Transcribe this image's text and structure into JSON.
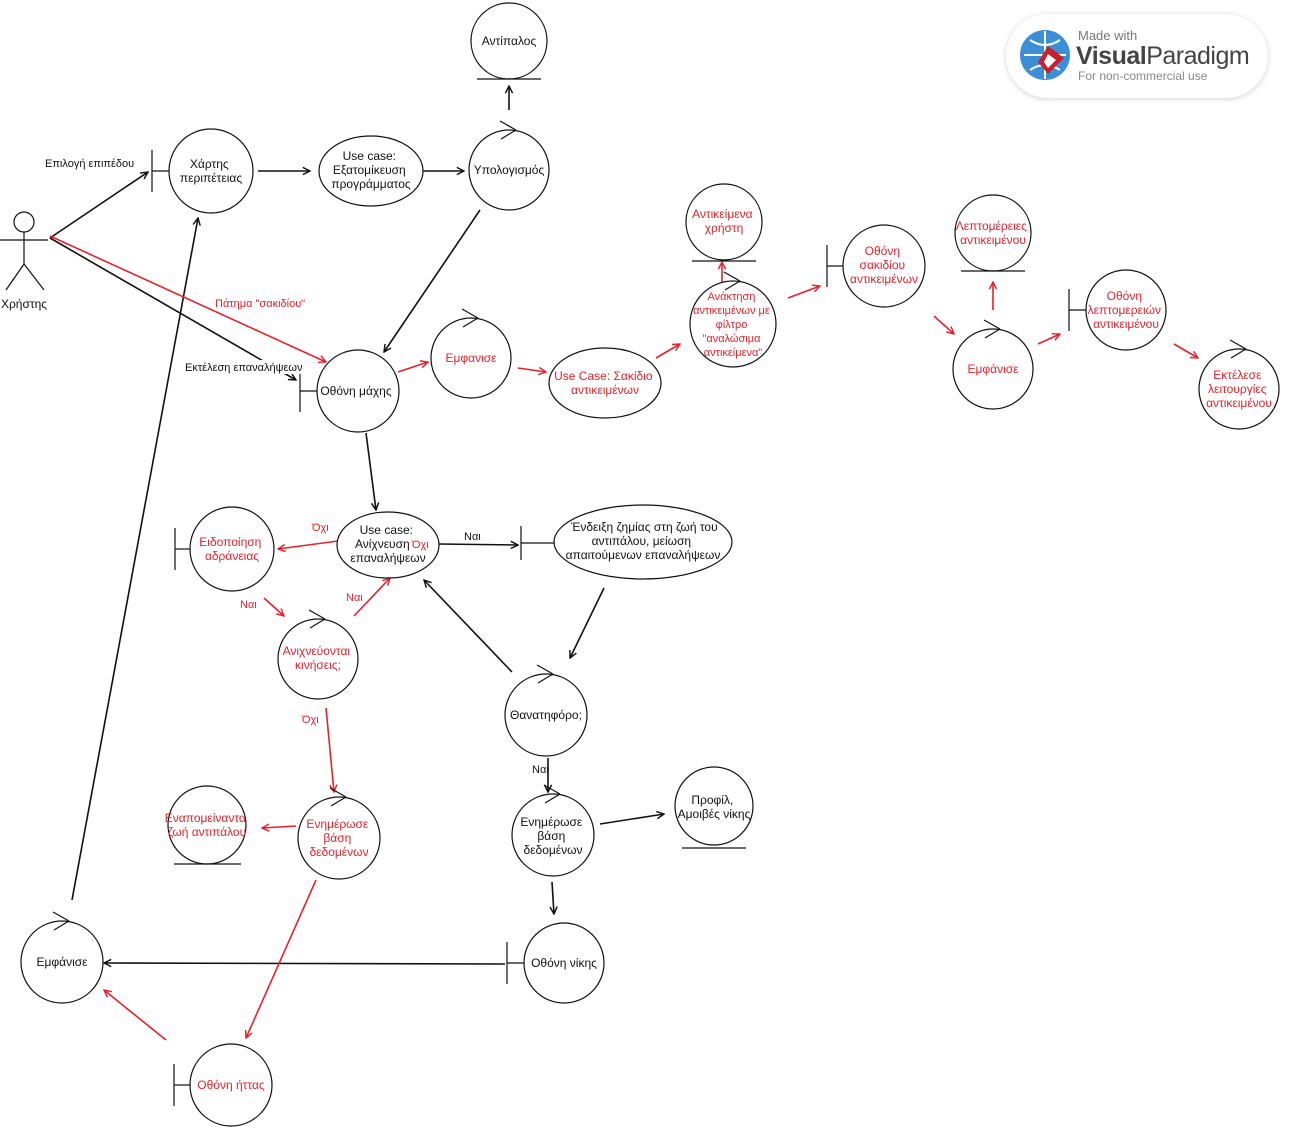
{
  "labels": {
    "actor": "Χρήστης",
    "antipalos": "Αντίπαλος",
    "xartis": [
      "Χάρτης",
      "περιπέτειας"
    ],
    "uc_custom": [
      "Use case:",
      "Εξατομίκευση",
      "προγράμματος"
    ],
    "ypologismos": "Υπολογισμός",
    "othoni_maxis": "Οθόνη μάχης",
    "emfanise_top": "Εμφανισε",
    "uc_sakidio": [
      "Use Case: Σακίδιο",
      "αντικειμένων"
    ],
    "antikeimena_xristi": [
      "Αντικείμενα",
      "χρήστη"
    ],
    "anaktisi": [
      "Ανάκτηση",
      "αντικειμένων με",
      "φίλτρο",
      "\"αναλώσιμα",
      "αντικείμενα\""
    ],
    "othoni_sakidiou": [
      "Οθόνη",
      "σακιδίου",
      "αντικειμένων"
    ],
    "leptomereies": [
      "Λεπτομέρειες",
      "αντικειμένου"
    ],
    "emfanise_right": "Εμφάνισε",
    "othoni_leptomereion": [
      "Οθόνη",
      "λεπτομερειών",
      "αντικειμένου"
    ],
    "ektelese": [
      "Εκτέλεσε",
      "λειτουργίες",
      "αντικειμένου"
    ],
    "uc_anixneusi": [
      "Use case:",
      "Ανίχνευση",
      "επαναλήψεων"
    ],
    "endeixi": [
      "Ένδειξη ζημίας στη ζωή του",
      "αντιπάλου, μείωση",
      "απαιτούμενων επαναλήψεων"
    ],
    "eidopoiisi": [
      "Ειδοποίηση",
      "αδράνειας"
    ],
    "anixneuontai": [
      "Ανιχνεύονται",
      "κινήσεις;"
    ],
    "thanatiforo": "Θανατηφόρο;",
    "enapomeinanta": [
      "Εναπομείναντα",
      "ζωή αντιπάλου"
    ],
    "enimerose_red": [
      "Ενημέρωσε",
      "βάση",
      "δεδομένων"
    ],
    "enimerose_black": [
      "Ενημέρωσε",
      "βάση",
      "δεδομένων"
    ],
    "profil": [
      "Προφίλ,",
      "Αμοιβές νίκης"
    ],
    "emfanise_left": "Εμφάνισε",
    "othoni_nikis": "Οθόνη νίκης",
    "othoni_ittas": "Οθόνη ήττας"
  },
  "edge_labels": {
    "epilogi": "Επιλογή επιπέδου",
    "patima": "Πάτημα \"σακιδίου\"",
    "ektelesi": "Εκτέλεση επαναλήψεων",
    "oxi_1": "Όχι",
    "oxi_2": "Όχι",
    "nai_1": "Ναι",
    "nai_2": "Ναι",
    "nai_3": "Ναι",
    "oxi_3": "Όχι",
    "nai_4": "Ναι"
  },
  "badge": {
    "made_with": "Made with",
    "brand_a": "Visual",
    "brand_b": "Paradigm",
    "usage": "For non-commercial use"
  },
  "colors": {
    "black": "#111111",
    "red": "#e8202a"
  }
}
